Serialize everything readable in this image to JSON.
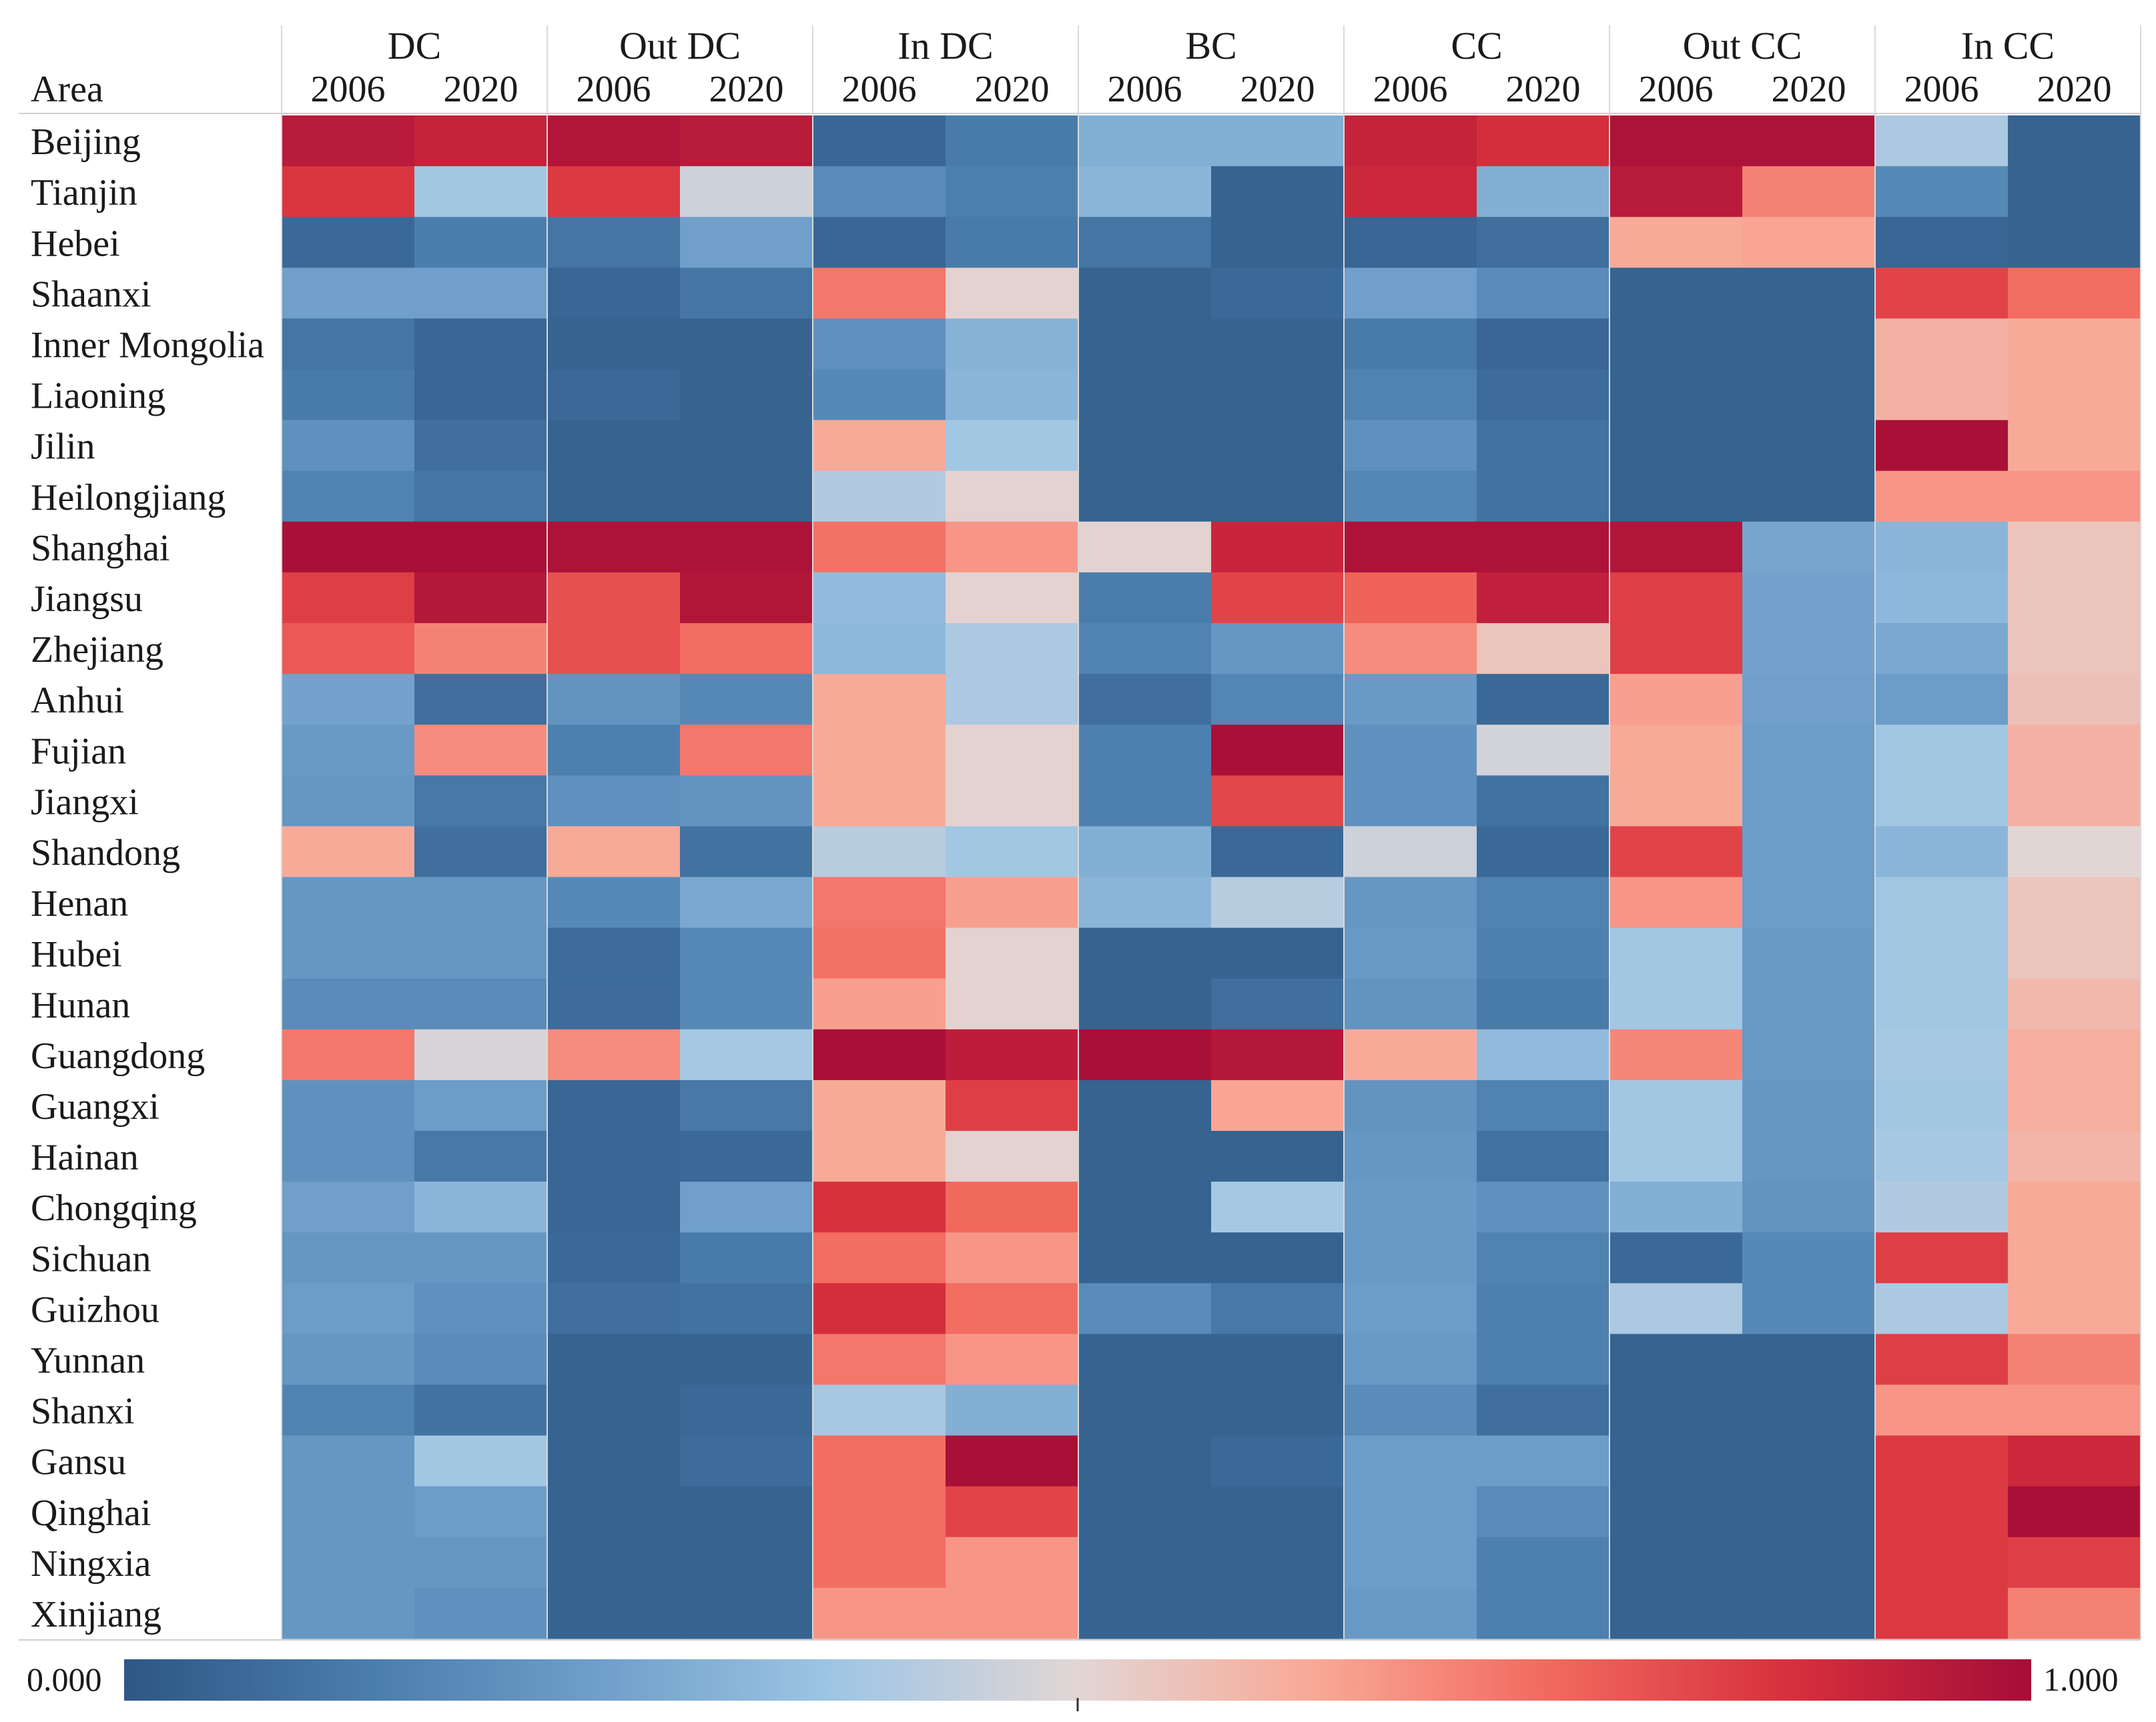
{
  "chart_data": {
    "type": "heatmap",
    "row_header": "Area",
    "areas": [
      "Beijing",
      "Tianjin",
      "Hebei",
      "Shaanxi",
      "Inner Mongolia",
      "Liaoning",
      "Jilin",
      "Heilongjiang",
      "Shanghai",
      "Jiangsu",
      "Zhejiang",
      "Anhui",
      "Fujian",
      "Jiangxi",
      "Shandong",
      "Henan",
      "Hubei",
      "Hunan",
      "Guangdong",
      "Guangxi",
      "Hainan",
      "Chongqing",
      "Sichuan",
      "Guizhou",
      "Yunnan",
      "Shanxi",
      "Gansu",
      "Qinghai",
      "Ningxia",
      "Xinjiang"
    ],
    "groups": [
      {
        "name": "DC",
        "years": [
          "2006",
          "2020"
        ]
      },
      {
        "name": "Out DC",
        "years": [
          "2006",
          "2020"
        ]
      },
      {
        "name": "In DC",
        "years": [
          "2006",
          "2020"
        ]
      },
      {
        "name": "BC",
        "years": [
          "2006",
          "2020"
        ]
      },
      {
        "name": "CC",
        "years": [
          "2006",
          "2020"
        ]
      },
      {
        "name": "Out CC",
        "years": [
          "2006",
          "2020"
        ]
      },
      {
        "name": "In CC",
        "years": [
          "2006",
          "2020"
        ]
      }
    ],
    "color_scale": {
      "min_label": "0.000",
      "max_label": "1.000",
      "min": 0,
      "max": 1,
      "stops": [
        "#2d5784",
        "#4a7cab",
        "#6f9fca",
        "#9fc6e4",
        "#e2d6d5",
        "#f9a896",
        "#f1685d",
        "#d62f3d",
        "#a50d38"
      ]
    },
    "values": [
      [
        0.95,
        0.92,
        0.97,
        0.95,
        0.05,
        0.12,
        0.3,
        0.3,
        0.92,
        0.88,
        0.98,
        0.98,
        0.4,
        0.04
      ],
      [
        0.86,
        0.38,
        0.85,
        0.46,
        0.18,
        0.14,
        0.32,
        0.04,
        0.9,
        0.3,
        0.95,
        0.7,
        0.17,
        0.04
      ],
      [
        0.06,
        0.13,
        0.1,
        0.25,
        0.05,
        0.12,
        0.1,
        0.04,
        0.05,
        0.08,
        0.62,
        0.63,
        0.05,
        0.04
      ],
      [
        0.25,
        0.25,
        0.05,
        0.1,
        0.72,
        0.51,
        0.04,
        0.06,
        0.25,
        0.18,
        0.04,
        0.04,
        0.83,
        0.74
      ],
      [
        0.1,
        0.05,
        0.04,
        0.04,
        0.2,
        0.31,
        0.04,
        0.04,
        0.12,
        0.05,
        0.04,
        0.04,
        0.6,
        0.62
      ],
      [
        0.12,
        0.05,
        0.06,
        0.04,
        0.17,
        0.32,
        0.04,
        0.04,
        0.15,
        0.07,
        0.04,
        0.04,
        0.6,
        0.62
      ],
      [
        0.2,
        0.08,
        0.04,
        0.04,
        0.62,
        0.38,
        0.04,
        0.04,
        0.2,
        0.09,
        0.04,
        0.04,
        0.99,
        0.62
      ],
      [
        0.15,
        0.1,
        0.04,
        0.04,
        0.41,
        0.51,
        0.04,
        0.04,
        0.16,
        0.09,
        0.04,
        0.04,
        0.66,
        0.66
      ],
      [
        0.99,
        0.99,
        0.98,
        0.98,
        0.73,
        0.66,
        0.51,
        0.91,
        0.98,
        0.98,
        0.97,
        0.27,
        0.32,
        0.55
      ],
      [
        0.84,
        0.96,
        0.8,
        0.97,
        0.34,
        0.51,
        0.13,
        0.83,
        0.76,
        0.93,
        0.84,
        0.26,
        0.33,
        0.55
      ],
      [
        0.78,
        0.7,
        0.8,
        0.74,
        0.33,
        0.4,
        0.15,
        0.22,
        0.68,
        0.55,
        0.84,
        0.26,
        0.28,
        0.55
      ],
      [
        0.26,
        0.08,
        0.21,
        0.17,
        0.62,
        0.4,
        0.08,
        0.16,
        0.23,
        0.06,
        0.64,
        0.25,
        0.24,
        0.56
      ],
      [
        0.23,
        0.68,
        0.14,
        0.72,
        0.62,
        0.51,
        0.14,
        0.99,
        0.2,
        0.47,
        0.62,
        0.24,
        0.38,
        0.6
      ],
      [
        0.22,
        0.11,
        0.2,
        0.21,
        0.62,
        0.51,
        0.14,
        0.82,
        0.2,
        0.09,
        0.62,
        0.24,
        0.38,
        0.6
      ],
      [
        0.62,
        0.08,
        0.62,
        0.09,
        0.42,
        0.38,
        0.3,
        0.06,
        0.46,
        0.06,
        0.83,
        0.24,
        0.32,
        0.5
      ],
      [
        0.22,
        0.22,
        0.17,
        0.28,
        0.72,
        0.64,
        0.32,
        0.42,
        0.22,
        0.15,
        0.66,
        0.24,
        0.38,
        0.55
      ],
      [
        0.22,
        0.22,
        0.07,
        0.17,
        0.73,
        0.51,
        0.04,
        0.04,
        0.23,
        0.14,
        0.38,
        0.23,
        0.38,
        0.55
      ],
      [
        0.18,
        0.18,
        0.07,
        0.17,
        0.64,
        0.51,
        0.04,
        0.08,
        0.21,
        0.12,
        0.38,
        0.23,
        0.38,
        0.58
      ],
      [
        0.72,
        0.48,
        0.68,
        0.39,
        0.99,
        0.94,
        0.99,
        0.96,
        0.62,
        0.34,
        0.69,
        0.23,
        0.39,
        0.61
      ],
      [
        0.2,
        0.24,
        0.05,
        0.11,
        0.62,
        0.84,
        0.04,
        0.63,
        0.21,
        0.15,
        0.38,
        0.22,
        0.38,
        0.61
      ],
      [
        0.2,
        0.11,
        0.05,
        0.06,
        0.62,
        0.51,
        0.04,
        0.04,
        0.22,
        0.09,
        0.38,
        0.22,
        0.39,
        0.59
      ],
      [
        0.25,
        0.32,
        0.05,
        0.25,
        0.87,
        0.75,
        0.04,
        0.39,
        0.23,
        0.2,
        0.3,
        0.21,
        0.41,
        0.62
      ],
      [
        0.22,
        0.22,
        0.06,
        0.12,
        0.74,
        0.66,
        0.04,
        0.04,
        0.23,
        0.15,
        0.06,
        0.17,
        0.84,
        0.62
      ],
      [
        0.24,
        0.2,
        0.08,
        0.09,
        0.88,
        0.74,
        0.18,
        0.11,
        0.24,
        0.14,
        0.4,
        0.17,
        0.4,
        0.62
      ],
      [
        0.22,
        0.18,
        0.04,
        0.04,
        0.72,
        0.66,
        0.04,
        0.04,
        0.23,
        0.14,
        0.04,
        0.04,
        0.84,
        0.7
      ],
      [
        0.15,
        0.09,
        0.04,
        0.06,
        0.39,
        0.3,
        0.04,
        0.04,
        0.18,
        0.08,
        0.04,
        0.04,
        0.66,
        0.66
      ],
      [
        0.22,
        0.38,
        0.04,
        0.07,
        0.74,
        0.99,
        0.04,
        0.06,
        0.24,
        0.24,
        0.04,
        0.04,
        0.85,
        0.9
      ],
      [
        0.22,
        0.24,
        0.04,
        0.04,
        0.74,
        0.83,
        0.04,
        0.04,
        0.24,
        0.18,
        0.04,
        0.04,
        0.85,
        0.99
      ],
      [
        0.22,
        0.22,
        0.04,
        0.04,
        0.74,
        0.66,
        0.04,
        0.04,
        0.24,
        0.14,
        0.04,
        0.04,
        0.85,
        0.84
      ],
      [
        0.22,
        0.2,
        0.04,
        0.04,
        0.66,
        0.66,
        0.04,
        0.04,
        0.23,
        0.14,
        0.04,
        0.04,
        0.85,
        0.7
      ]
    ]
  }
}
